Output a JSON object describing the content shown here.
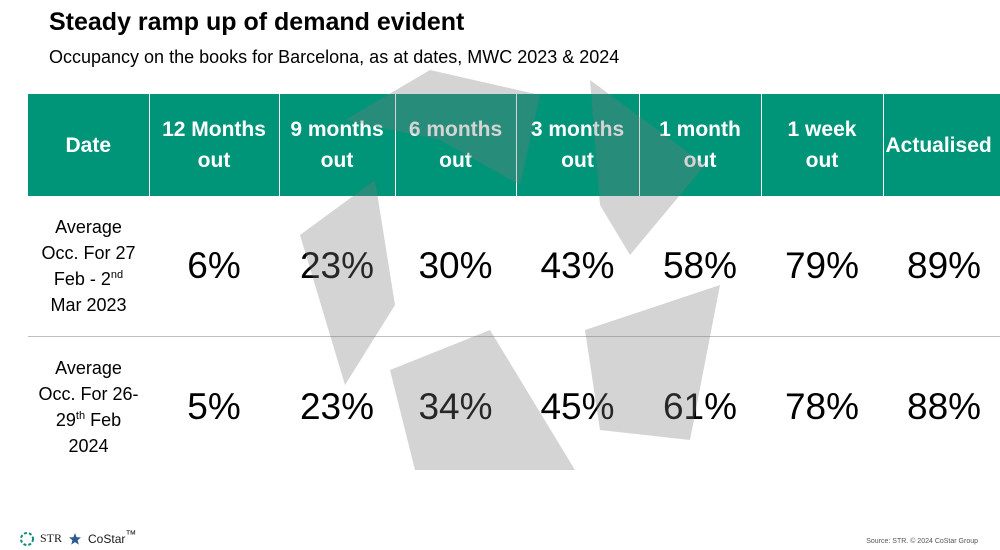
{
  "title": "Steady ramp up of demand evident",
  "subtitle": "Occupancy on the books for Barcelona, as at dates, MWC 2023 & 2024",
  "table": {
    "headers": [
      {
        "line1": "Date",
        "line2": ""
      },
      {
        "line1": "12 Months",
        "line2": "out"
      },
      {
        "line1": "9 months",
        "line2": "out"
      },
      {
        "line1": "6 months",
        "line2": "out"
      },
      {
        "line1": "3 months",
        "line2": "out"
      },
      {
        "line1": "1 month",
        "line2": "out"
      },
      {
        "line1": "1 week",
        "line2": "out"
      },
      {
        "line1": "Actualised",
        "line2": ""
      }
    ],
    "rows": [
      {
        "label": {
          "l1": "Average",
          "l2": "Occ. For 27",
          "l3a": "Feb - 2",
          "l3sup": "nd",
          "l4": "Mar 2023"
        },
        "values": [
          "6%",
          "23%",
          "30%",
          "43%",
          "58%",
          "79%",
          "89%"
        ]
      },
      {
        "label": {
          "l1": "Average",
          "l2": "Occ. For 26-",
          "l3a": "29",
          "l3sup": "th",
          "l3b": " Feb",
          "l4": "2024"
        },
        "values": [
          "5%",
          "23%",
          "34%",
          "45%",
          "61%",
          "78%",
          "88%"
        ]
      }
    ]
  },
  "footer": {
    "logo1": "STR",
    "logo2": "CoStar",
    "logo2_tm": "™",
    "source": "Source: STR. © 2024 CoStar Group"
  },
  "colors": {
    "header_bg": "#009579",
    "watermark": "#d6d6d6"
  }
}
